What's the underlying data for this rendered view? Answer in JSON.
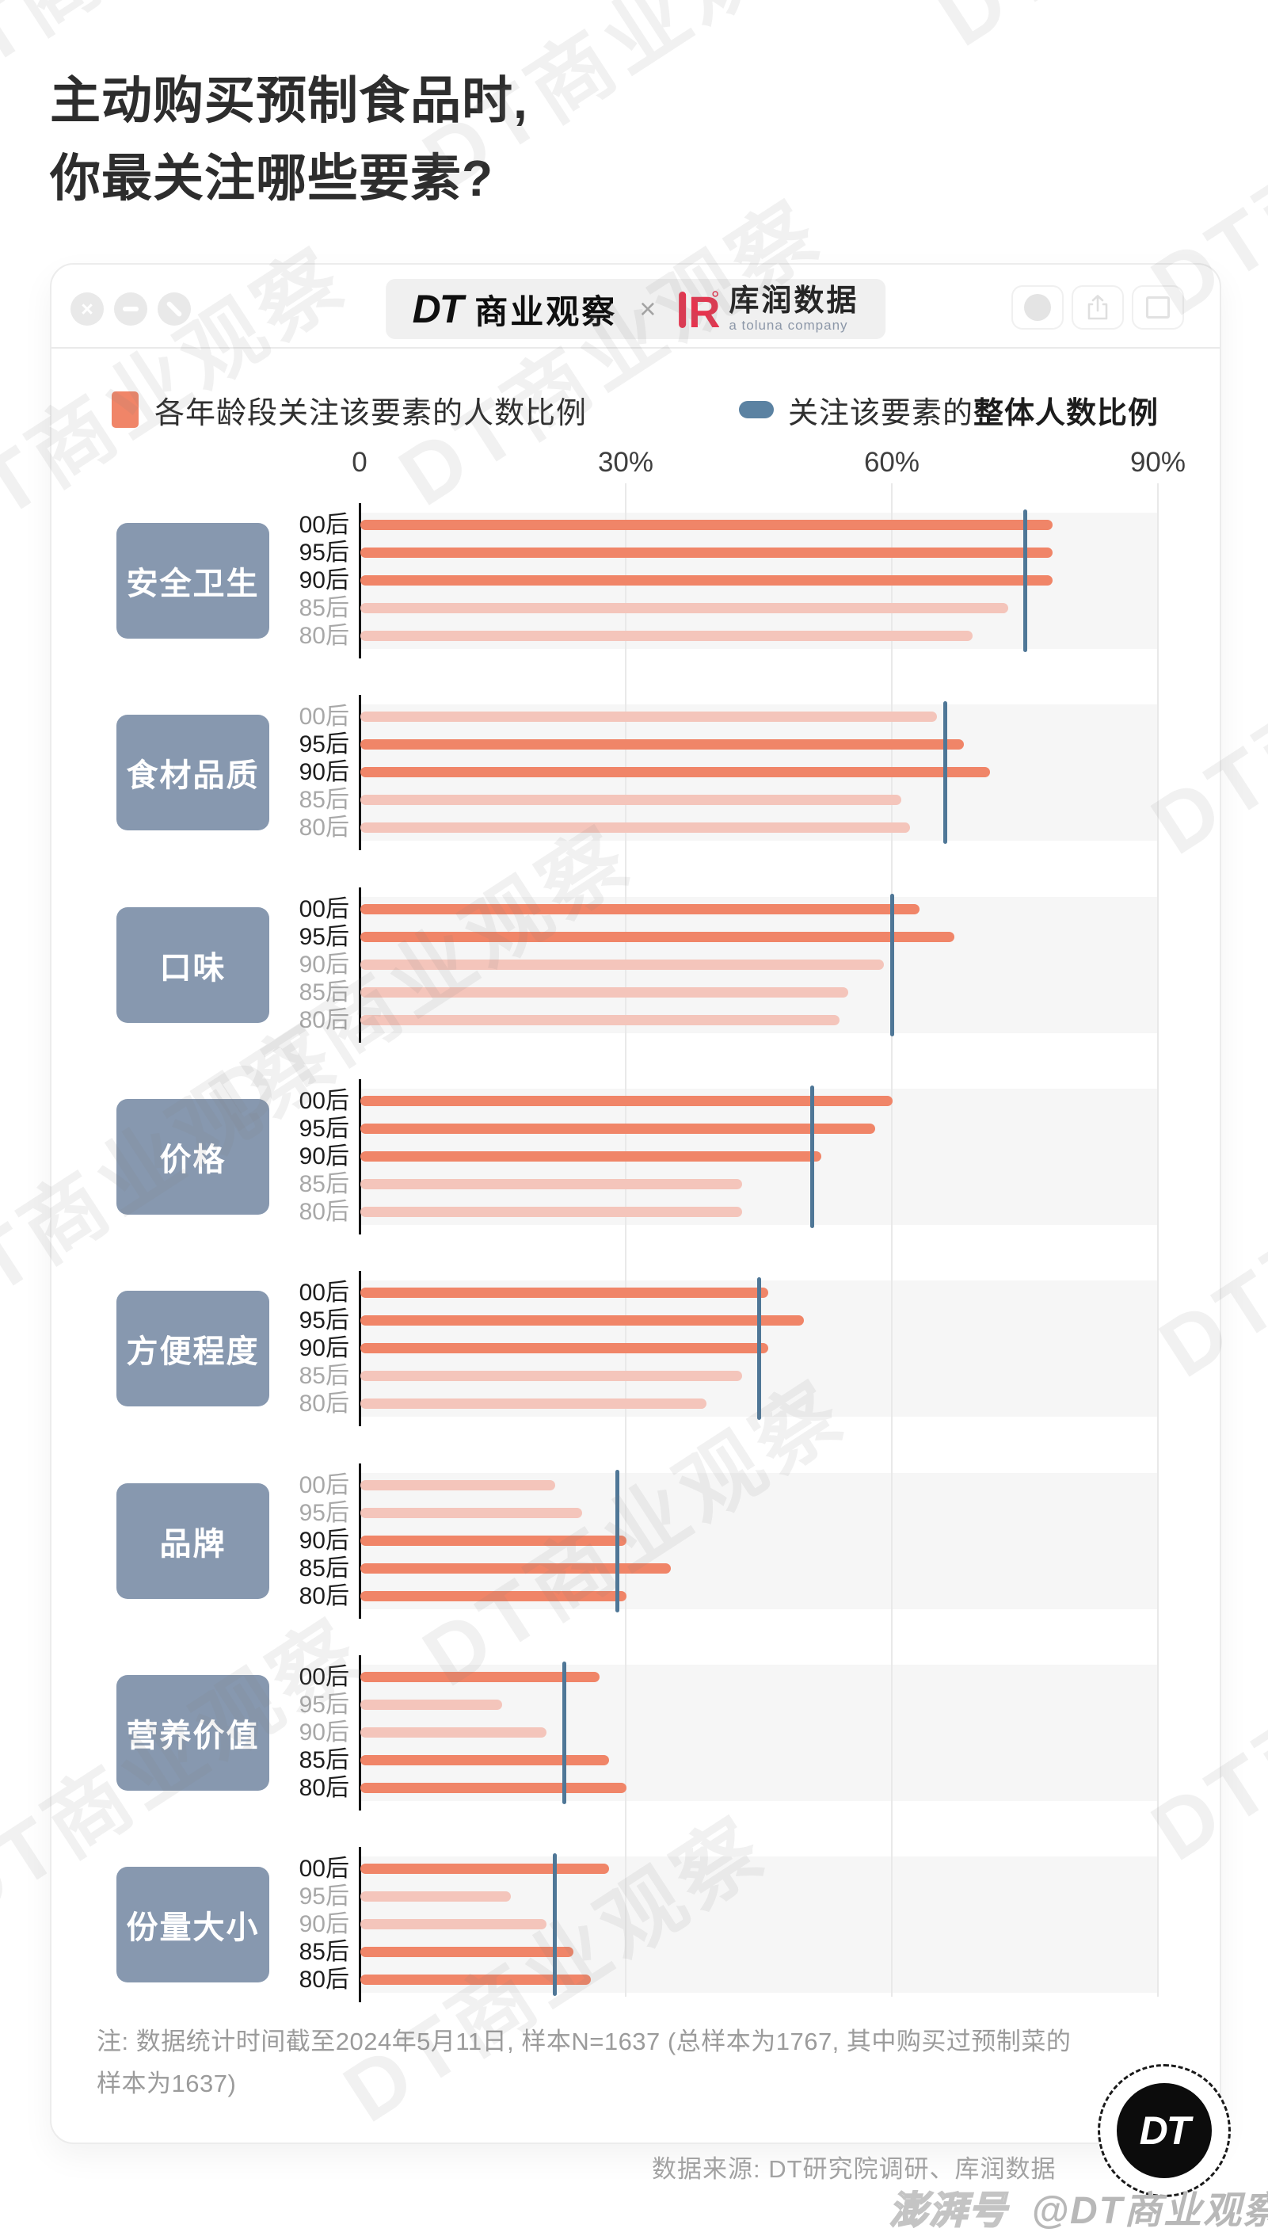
{
  "watermark": {
    "text": "DT商业观察"
  },
  "title": {
    "line1": "主动购买预制食品时,",
    "line2": "你最关注哪些要素?"
  },
  "header": {
    "brand": {
      "dt_logo": "DT",
      "dt_name": "商业观察",
      "cross": "×",
      "kr_logo": "R",
      "kr_name": "库润数据",
      "kr_tagline": "a toluna company"
    },
    "icons": {
      "close": "×",
      "minimize": "minus-bar",
      "diagonal": "diagonal-slash",
      "record": "filled-circle",
      "share": "share-arrow-box",
      "copy": "overlapping-squares"
    }
  },
  "legend": {
    "bars": "各年龄段关注该要素的人数比例",
    "line_prefix": "关注该要素的",
    "line_bold": "整体人数比例"
  },
  "chart_data": {
    "type": "bar",
    "orientation": "horizontal",
    "unit": "%",
    "x_ticks": [
      "0",
      "30%",
      "60%",
      "90%"
    ],
    "x_tick_values": [
      0,
      30,
      60,
      90
    ],
    "xlim": [
      0,
      90
    ],
    "grid": true,
    "age_groups": [
      "00后",
      "95后",
      "90后",
      "85后",
      "80后"
    ],
    "series_meaning": {
      "bars": "各年龄段关注该要素的人数比例",
      "vertical_line": "关注该要素的整体人数比例"
    },
    "categories": [
      {
        "name": "安全卫生",
        "overall": 75,
        "values": [
          78,
          78,
          78,
          73,
          69
        ],
        "highlight": [
          true,
          true,
          true,
          false,
          false
        ]
      },
      {
        "name": "食材品质",
        "overall": 66,
        "values": [
          65,
          68,
          71,
          61,
          62
        ],
        "highlight": [
          false,
          true,
          true,
          false,
          false
        ]
      },
      {
        "name": "口味",
        "overall": 60,
        "values": [
          63,
          67,
          59,
          55,
          54
        ],
        "highlight": [
          true,
          true,
          false,
          false,
          false
        ]
      },
      {
        "name": "价格",
        "overall": 51,
        "values": [
          60,
          58,
          52,
          43,
          43
        ],
        "highlight": [
          true,
          true,
          true,
          false,
          false
        ]
      },
      {
        "name": "方便程度",
        "overall": 45,
        "values": [
          46,
          50,
          46,
          43,
          39
        ],
        "highlight": [
          true,
          true,
          true,
          false,
          false
        ]
      },
      {
        "name": "品牌",
        "overall": 29,
        "values": [
          22,
          25,
          30,
          35,
          30
        ],
        "highlight": [
          false,
          false,
          true,
          true,
          true
        ]
      },
      {
        "name": "营养价值",
        "overall": 23,
        "values": [
          27,
          16,
          21,
          28,
          30
        ],
        "highlight": [
          true,
          false,
          false,
          true,
          true
        ]
      },
      {
        "name": "份量大小",
        "overall": 22,
        "values": [
          28,
          17,
          21,
          24,
          26
        ],
        "highlight": [
          true,
          false,
          false,
          true,
          true
        ]
      }
    ]
  },
  "note": {
    "line1": "注: 数据统计时间截至2024年5月11日, 样本N=1637 (总样本为1767, 其中购买过预制菜的",
    "line2": "样本为1637)"
  },
  "source": "数据来源: DT研究院调研、库润数据",
  "footer_logo_text": "DT",
  "publisher_watermark": {
    "brand": "澎湃号",
    "handle": "@DT商业观察"
  },
  "colors": {
    "bar": "#F08568",
    "bar_muted": "#F4C5BB",
    "overall_line": "#4F7797",
    "category_box": "#8798AF",
    "kr_red": "#E5344E"
  }
}
